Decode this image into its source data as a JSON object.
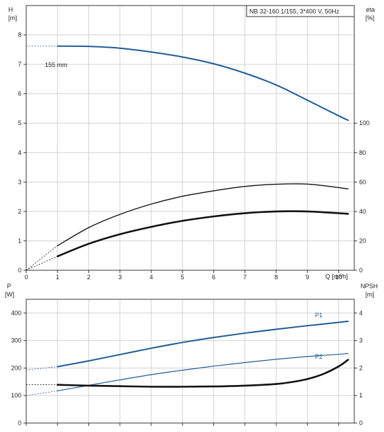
{
  "chart_data": [
    {
      "type": "line",
      "title": "NB 32-160.1/155, 3*400 V, 50Hz",
      "xlabel": "Q [m³/h]",
      "xlim": [
        0,
        10.5
      ],
      "x_ticks": [
        0,
        1,
        2,
        3,
        4,
        5,
        6,
        7,
        8,
        9,
        10
      ],
      "y_left": {
        "label": "H",
        "unit": "[m]",
        "ylim": [
          0,
          9
        ],
        "ticks": [
          0,
          1,
          2,
          3,
          4,
          5,
          6,
          7,
          8
        ]
      },
      "y_right": {
        "label": "eta",
        "unit": "[%]",
        "ylim": [
          0,
          180
        ],
        "ticks": [
          0,
          20,
          40,
          60,
          80,
          100
        ]
      },
      "grid": true,
      "annotations": [
        {
          "text": "155 mm",
          "series": "H"
        }
      ],
      "series": [
        {
          "axis": "left",
          "color": "#1f5a96",
          "width": 2,
          "dashed_before": 1.0,
          "x": [
            0,
            1,
            2,
            3,
            4,
            5,
            6,
            7,
            8,
            9,
            10,
            10.3
          ],
          "y": [
            7.62,
            7.62,
            7.61,
            7.55,
            7.42,
            7.25,
            7.02,
            6.7,
            6.3,
            5.78,
            5.25,
            5.1
          ]
        },
        {
          "axis": "right",
          "color": "#111111",
          "width": 1.4,
          "dashed_before": 1.0,
          "x": [
            0,
            1,
            2,
            3,
            4,
            5,
            6,
            7,
            8,
            9,
            10,
            10.3
          ],
          "y": [
            0,
            16.7,
            29,
            38,
            45,
            50.3,
            54,
            57,
            58.5,
            58.6,
            56.2,
            55.3
          ]
        },
        {
          "axis": "right",
          "color": "#111111",
          "width": 2.6,
          "dashed_before": 1.0,
          "x": [
            0,
            1,
            2,
            3,
            4,
            5,
            6,
            7,
            8,
            9,
            10,
            10.3
          ],
          "y": [
            0,
            9.5,
            18,
            24.5,
            29.5,
            33.6,
            36.6,
            38.8,
            40,
            40,
            38.8,
            38.4
          ]
        }
      ]
    },
    {
      "type": "line",
      "xlim": [
        0,
        10.5
      ],
      "y_left": {
        "label": "P",
        "unit": "[W]",
        "ylim": [
          0,
          450
        ],
        "ticks": [
          0,
          100,
          200,
          300,
          400
        ]
      },
      "y_right": {
        "label": "NPSH",
        "unit": "[m]",
        "ylim": [
          0,
          4.5
        ],
        "ticks": [
          0,
          1,
          2,
          3,
          4
        ]
      },
      "grid": true,
      "series": [
        {
          "name": "P1",
          "axis": "left",
          "color": "#1f5a96",
          "width": 2,
          "dashed_before": 1.0,
          "x": [
            0,
            1,
            2,
            3,
            4,
            5,
            6,
            7,
            8,
            9,
            10,
            10.3
          ],
          "y": [
            193,
            205,
            226,
            249,
            272,
            293,
            311,
            327,
            341,
            354,
            366,
            370
          ]
        },
        {
          "name": "P2",
          "axis": "left",
          "color": "#1f5a96",
          "width": 1.2,
          "dashed_before": 1.0,
          "x": [
            0,
            1,
            2,
            3,
            4,
            5,
            6,
            7,
            8,
            9,
            10,
            10.3
          ],
          "y": [
            100,
            117,
            137,
            157,
            176,
            192,
            207,
            220,
            232,
            242,
            250,
            253
          ]
        },
        {
          "axis": "right",
          "color": "#111111",
          "width": 2.6,
          "dashed_before": 1.0,
          "x": [
            0,
            1,
            2,
            3,
            4,
            5,
            6,
            7,
            8,
            8.5,
            9,
            9.5,
            10,
            10.3
          ],
          "y": [
            1.4,
            1.39,
            1.36,
            1.34,
            1.32,
            1.32,
            1.33,
            1.36,
            1.42,
            1.49,
            1.6,
            1.78,
            2.06,
            2.3
          ]
        }
      ]
    }
  ]
}
